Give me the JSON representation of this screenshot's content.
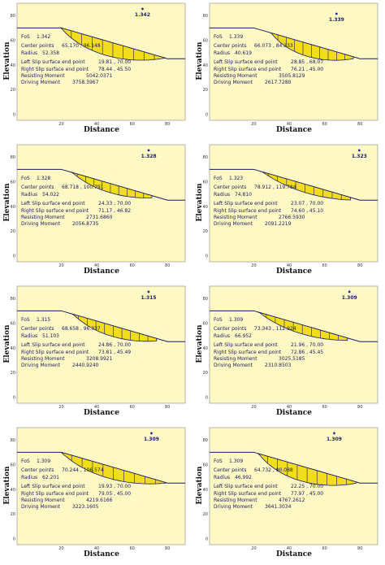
{
  "labels": {
    "y": "Elevation",
    "x": "Distance",
    "fos": "FoS",
    "center": "Center points",
    "radius": "Radius",
    "left": "Left Slip surface end point",
    "right": "Right Slip surface end point",
    "resisting": "Resisting Moment",
    "driving": "Driving Moment"
  },
  "axis": {
    "x_ticks": [
      "20",
      "40",
      "60",
      "80"
    ],
    "y_ticks": [
      "80",
      "60",
      "40",
      "20",
      "0"
    ]
  },
  "colors": {
    "plot_bg": "#fdf8c4",
    "slice_fill": "#f2dd1c",
    "outline": "#1a1a60"
  },
  "panels": [
    {
      "fos": "1.342",
      "center": "65.170 , 96.148",
      "radius": "52.358",
      "left_pt": "19.81 , 70.00",
      "right_pt": "78.44 , 45.50",
      "resisting": "5042.0371",
      "driving": "3758.3967"
    },
    {
      "fos": "1.339",
      "center": "66.073 , 84.333",
      "radius": "40.619",
      "left_pt": "28.85 , 68.07",
      "right_pt": "76.21 , 45.00",
      "resisting": "3505.8129",
      "driving": "2617.7280"
    },
    {
      "fos": "1.328",
      "center": "68.718 , 100.791",
      "radius": "54.022",
      "left_pt": "24.33 , 70.00",
      "right_pt": "71.17 , 46.82",
      "resisting": "2731.6860",
      "driving": "2056.8735"
    },
    {
      "fos": "1.323",
      "center": "78.912 , 119.784",
      "radius": "74.810",
      "left_pt": "23.07 , 70.00",
      "right_pt": "74.60 , 45.10",
      "resisting": "2766.5930",
      "driving": "2091.2219"
    },
    {
      "fos": "1.315",
      "center": "68.658 , 96.337",
      "radius": "51.103",
      "left_pt": "24.86 , 70.00",
      "right_pt": "73.81 , 45.49",
      "resisting": "3208.9921",
      "driving": "2440.9240"
    },
    {
      "fos": "1.309",
      "center": "73.343 , 112.924",
      "radius": "66.952",
      "left_pt": "21.96 , 70.00",
      "right_pt": "72.86 , 45.45",
      "resisting": "3025.5185",
      "driving": "2310.8503"
    },
    {
      "fos": "1.309",
      "center": "70.244 , 106.574",
      "radius": "62.201",
      "left_pt": "19.93 , 70.00",
      "right_pt": "79.05 , 45.00",
      "resisting": "4219.6166",
      "driving": "3223.1605"
    },
    {
      "fos": "1.309",
      "center": "64.732 , 90.088",
      "radius": "46.992",
      "left_pt": "22.25 , 70.00",
      "right_pt": "77.97 , 45.00",
      "resisting": "4767.2612",
      "driving": "3641.3034"
    }
  ]
}
